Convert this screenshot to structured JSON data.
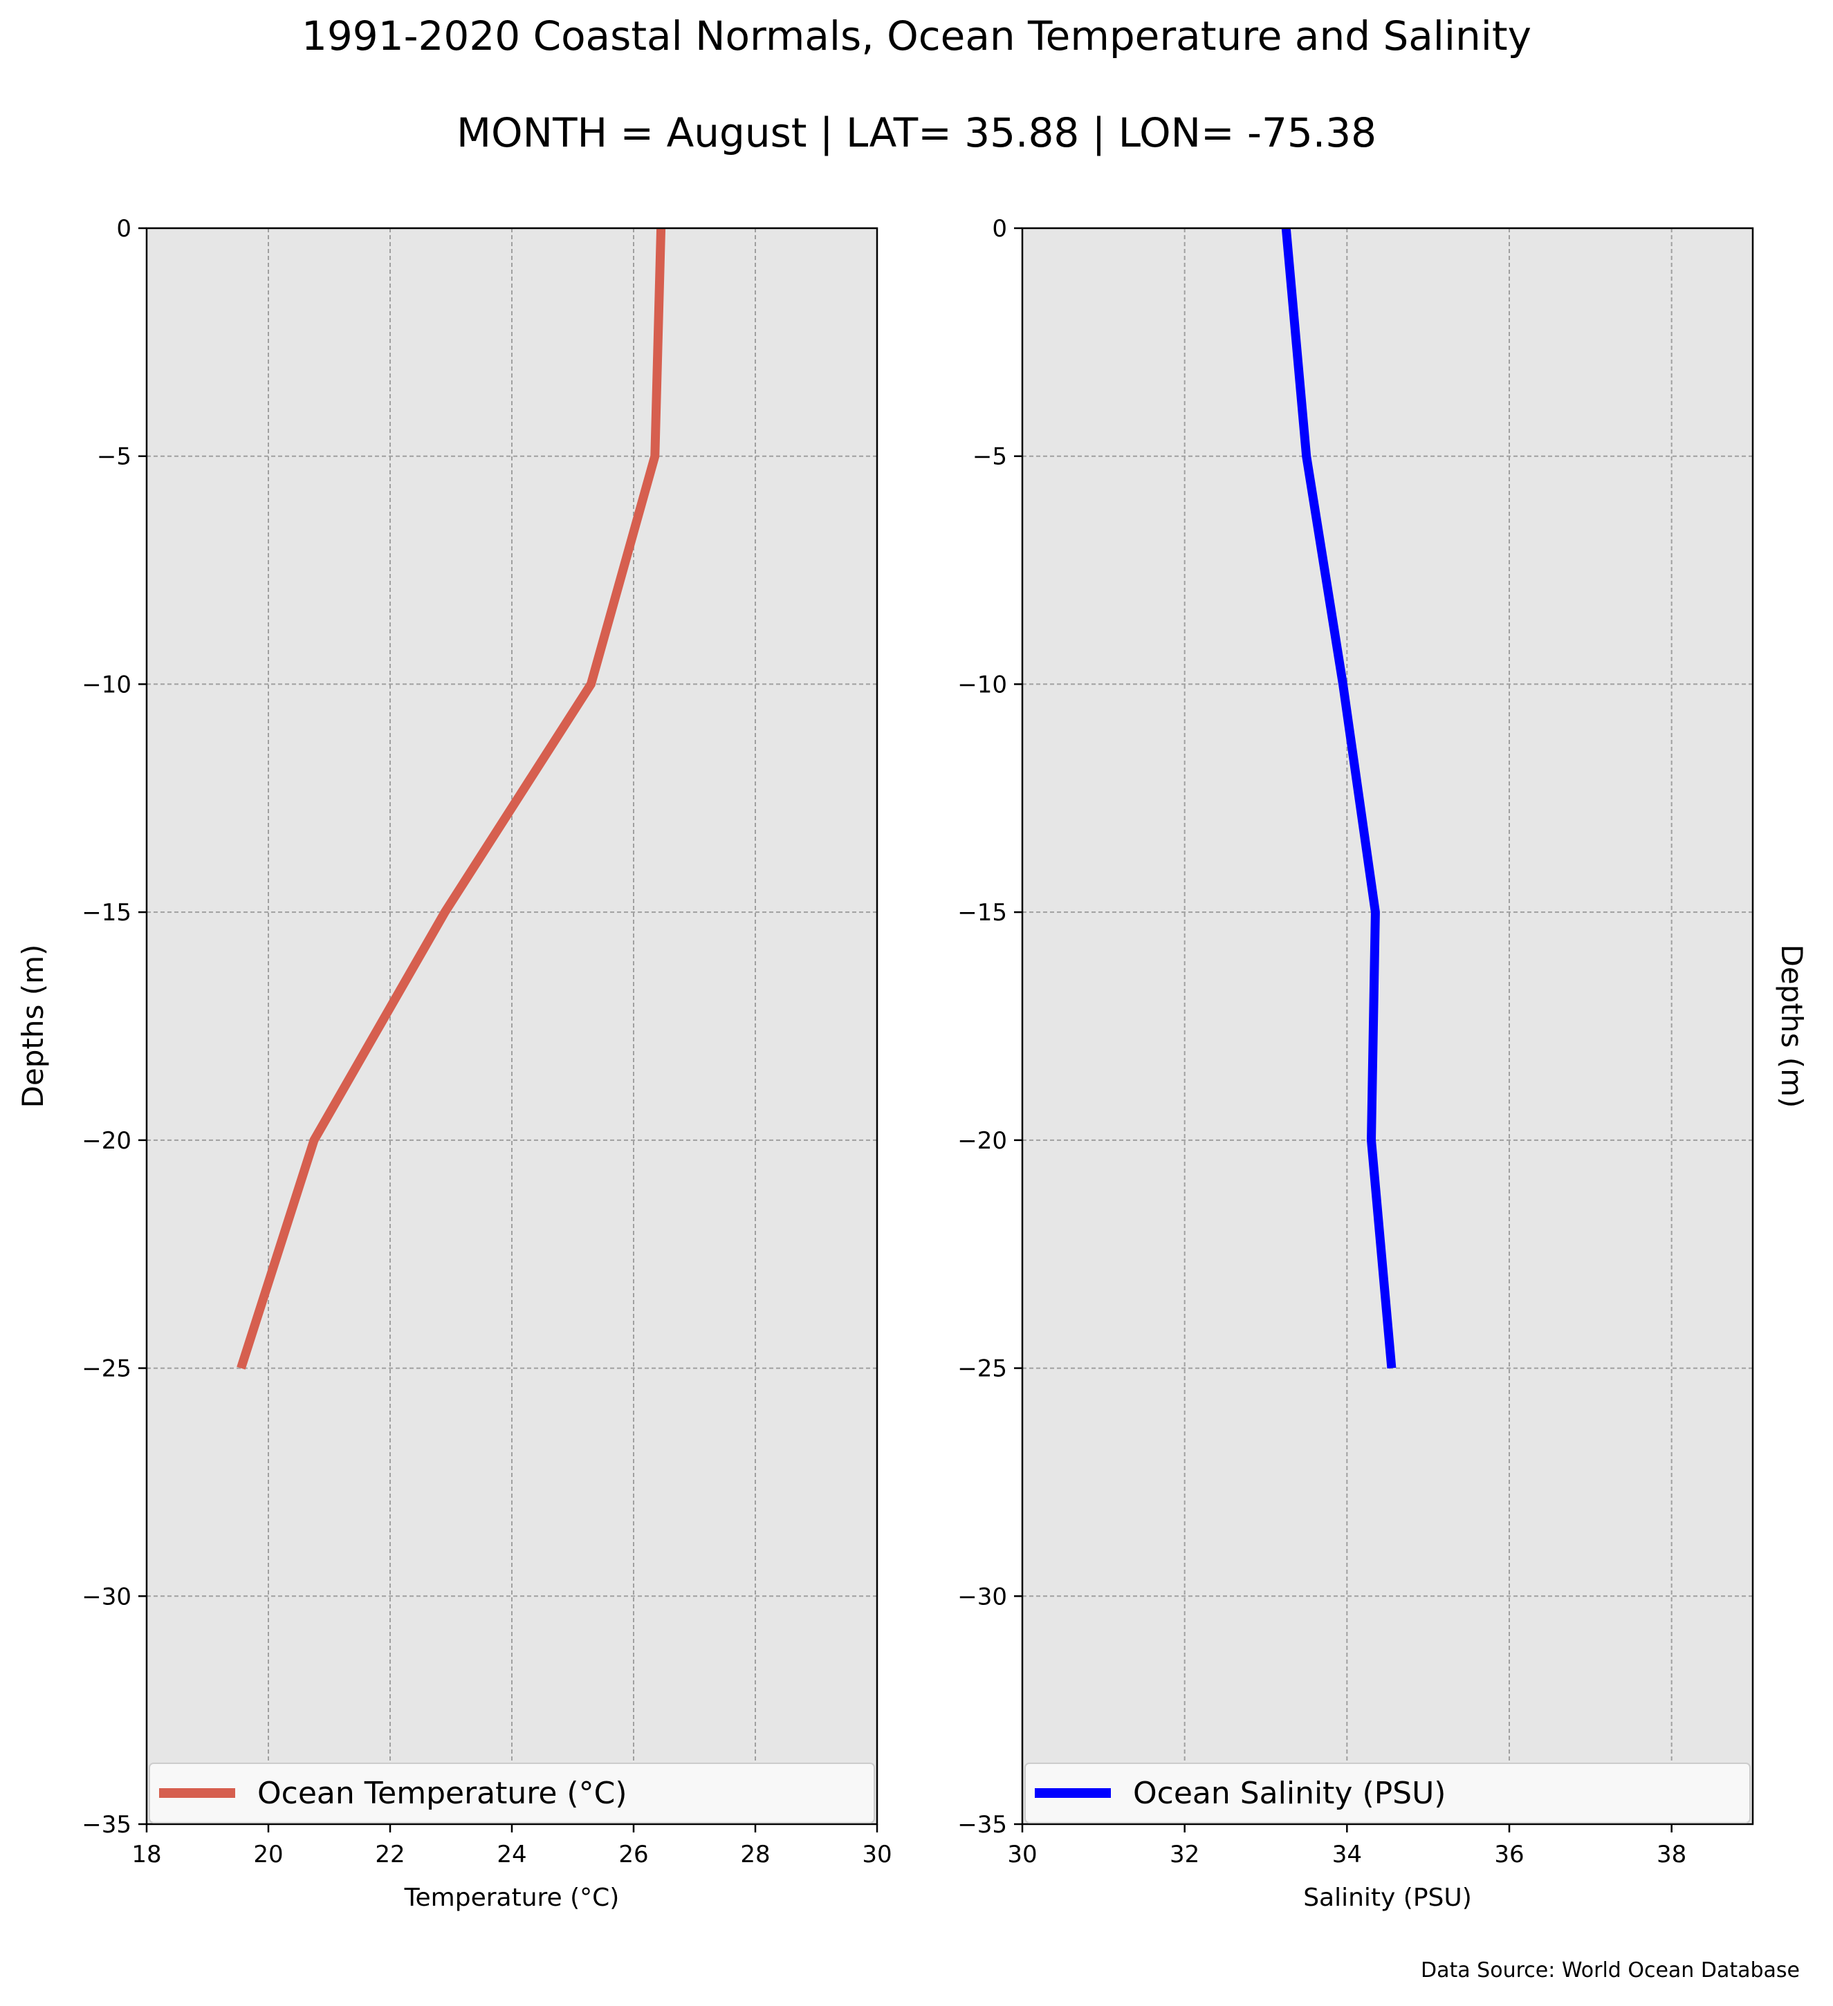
{
  "figure": {
    "title": "1991-2020 Coastal Normals, Ocean Temperature and Salinity",
    "subtitle": "MONTH = August | LAT= 35.88 | LON= -75.38",
    "source_note": "Data Source: World Ocean Database",
    "panel_background": "#e6e6e6",
    "grid_color": "#a0a0a0"
  },
  "chart_data": [
    {
      "type": "line",
      "title": "",
      "xlabel": "Temperature ($^\\circ$C)",
      "xlabel_display": "Temperature (°C)",
      "ylabel": "Depths (m)",
      "ylabel_side": "left",
      "xlim": [
        18,
        30
      ],
      "ylim": [
        -35,
        0
      ],
      "xticks": [
        18,
        20,
        22,
        24,
        26,
        28,
        30
      ],
      "yticks": [
        0,
        -5,
        -10,
        -15,
        -20,
        -25,
        -30,
        -35
      ],
      "ytick_labels": [
        "0",
        "−5",
        "−10",
        "−15",
        "−20",
        "−25",
        "−30",
        "−35"
      ],
      "grid": true,
      "legend_position": "bottom",
      "series": [
        {
          "name": "Ocean Temperature (°C)",
          "color": "#d65f4f",
          "x": [
            26.45,
            26.35,
            25.3,
            22.9,
            20.75,
            19.55
          ],
          "y": [
            0,
            -5,
            -10,
            -15,
            -20,
            -25
          ]
        }
      ]
    },
    {
      "type": "line",
      "title": "",
      "xlabel": "Salinity (PSU)",
      "xlabel_display": "Salinity (PSU)",
      "ylabel": "Depths (m)",
      "ylabel_side": "right",
      "xlim": [
        30,
        39
      ],
      "ylim": [
        -35,
        0
      ],
      "xticks": [
        30,
        32,
        34,
        36,
        38
      ],
      "yticks": [
        0,
        -5,
        -10,
        -15,
        -20,
        -25,
        -30,
        -35
      ],
      "ytick_labels": [
        "0",
        "−5",
        "−10",
        "−15",
        "−20",
        "−25",
        "−30",
        "−35"
      ],
      "grid": true,
      "legend_position": "bottom",
      "series": [
        {
          "name": "Ocean Salinity (PSU)",
          "color": "#0000ff",
          "x": [
            33.25,
            33.5,
            33.95,
            34.35,
            34.3,
            34.55
          ],
          "y": [
            0,
            -5,
            -10,
            -15,
            -20,
            -25
          ]
        }
      ]
    }
  ]
}
